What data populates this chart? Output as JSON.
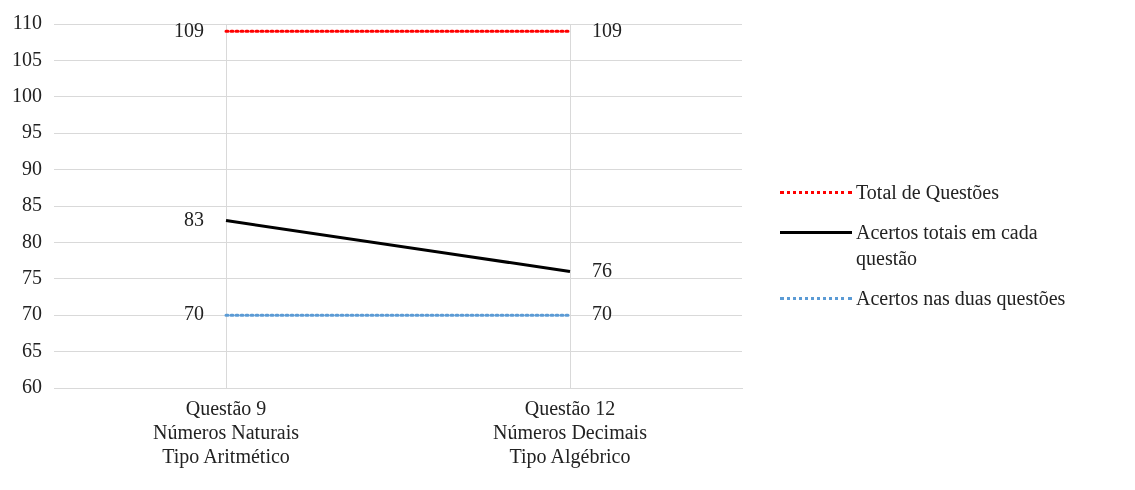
{
  "chart_data": {
    "type": "line",
    "categories": [
      "Questão 9\nNúmeros Naturais\nTipo Aritmético",
      "Questão 12\nNúmeros Decimais\nTipo Algébrico"
    ],
    "series": [
      {
        "name": "Total de Questões",
        "color": "#ff0000",
        "values": [
          109,
          109
        ],
        "line_style": "dotted"
      },
      {
        "name": "Acertos totais em cada\nquestão",
        "color": "#000000",
        "values": [
          83,
          76
        ],
        "line_style": "solid"
      },
      {
        "name": "Acertos nas duas questões",
        "color": "#5b9bd5",
        "values": [
          70,
          70
        ],
        "line_style": "dotted"
      }
    ],
    "ylim": [
      60,
      110
    ],
    "yticks": [
      60,
      65,
      70,
      75,
      80,
      85,
      90,
      95,
      100,
      105,
      110
    ],
    "grid": true,
    "legend": "right",
    "marker": "none",
    "data_labels": true
  }
}
